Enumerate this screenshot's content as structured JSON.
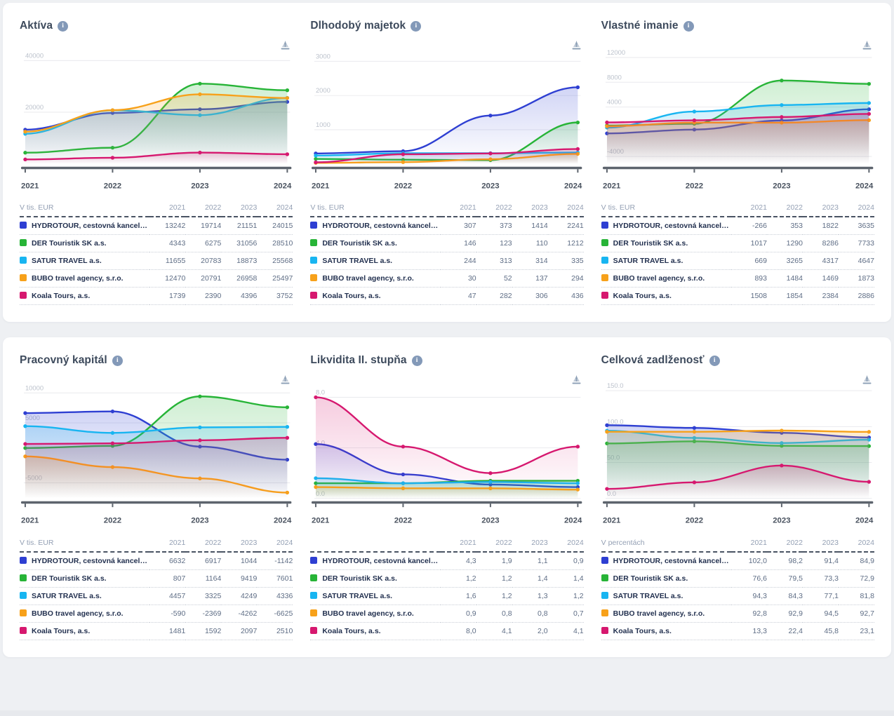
{
  "companies": [
    {
      "label": "HYDROTOUR, cestovná kancelári...",
      "color": "#2e3fd2"
    },
    {
      "label": "DER Touristik SK a.s.",
      "color": "#27b437"
    },
    {
      "label": "SATUR TRAVEL a.s.",
      "color": "#18b5f1"
    },
    {
      "label": "BUBO travel agency, s.r.o.",
      "color": "#f7a11a"
    },
    {
      "label": "Koala Tours, a.s.",
      "color": "#d6186f"
    }
  ],
  "icons": {
    "info": "i",
    "download": "download-chart-icon"
  },
  "panels": [
    {
      "title": "Aktíva",
      "unit_label": "V tis. EUR",
      "years": [
        "2021",
        "2022",
        "2023",
        "2024"
      ],
      "values": [
        [
          "13242",
          "19714",
          "21151",
          "24015"
        ],
        [
          "4343",
          "6275",
          "31056",
          "28510"
        ],
        [
          "11655",
          "20783",
          "18873",
          "25568"
        ],
        [
          "12470",
          "20791",
          "26958",
          "25497"
        ],
        [
          "1739",
          "2390",
          "4396",
          "3752"
        ]
      ]
    },
    {
      "title": "Dlhodobý majetok",
      "unit_label": "V tis. EUR",
      "years": [
        "2021",
        "2022",
        "2023",
        "2024"
      ],
      "values": [
        [
          "307",
          "373",
          "1414",
          "2241"
        ],
        [
          "146",
          "123",
          "110",
          "1212"
        ],
        [
          "244",
          "313",
          "314",
          "335"
        ],
        [
          "30",
          "52",
          "137",
          "294"
        ],
        [
          "47",
          "282",
          "306",
          "436"
        ]
      ]
    },
    {
      "title": "Vlastné imanie",
      "unit_label": "V tis. EUR",
      "years": [
        "2021",
        "2022",
        "2023",
        "2024"
      ],
      "values": [
        [
          "-266",
          "353",
          "1822",
          "3635"
        ],
        [
          "1017",
          "1290",
          "8286",
          "7733"
        ],
        [
          "669",
          "3265",
          "4317",
          "4647"
        ],
        [
          "893",
          "1484",
          "1469",
          "1873"
        ],
        [
          "1508",
          "1854",
          "2384",
          "2886"
        ]
      ]
    },
    {
      "title": "Pracovný kapitál",
      "unit_label": "V tis. EUR",
      "years": [
        "2021",
        "2022",
        "2023",
        "2024"
      ],
      "values": [
        [
          "6632",
          "6917",
          "1044",
          "-1142"
        ],
        [
          "807",
          "1164",
          "9419",
          "7601"
        ],
        [
          "4457",
          "3325",
          "4249",
          "4336"
        ],
        [
          "-590",
          "-2369",
          "-4262",
          "-6625"
        ],
        [
          "1481",
          "1592",
          "2097",
          "2510"
        ]
      ]
    },
    {
      "title": "Likvidita II. stupňa",
      "unit_label": "",
      "years": [
        "2021",
        "2022",
        "2023",
        "2024"
      ],
      "values": [
        [
          "4,3",
          "1,9",
          "1,1",
          "0,9"
        ],
        [
          "1,2",
          "1,2",
          "1,4",
          "1,4"
        ],
        [
          "1,6",
          "1,2",
          "1,3",
          "1,2"
        ],
        [
          "0,9",
          "0,8",
          "0,8",
          "0,7"
        ],
        [
          "8,0",
          "4,1",
          "2,0",
          "4,1"
        ]
      ]
    },
    {
      "title": "Celková zadlženosť",
      "unit_label": "V percentách",
      "years": [
        "2021",
        "2022",
        "2023",
        "2024"
      ],
      "values": [
        [
          "102,0",
          "98,2",
          "91,4",
          "84,9"
        ],
        [
          "76,6",
          "79,5",
          "73,3",
          "72,9"
        ],
        [
          "94,3",
          "84,3",
          "77,1",
          "81,8"
        ],
        [
          "92,8",
          "92,9",
          "94,5",
          "92,7"
        ],
        [
          "13,3",
          "22,4",
          "45,8",
          "23,1"
        ]
      ]
    }
  ],
  "chart_data": [
    {
      "type": "line",
      "title": "Aktíva",
      "x": [
        2021,
        2022,
        2023,
        2024
      ],
      "ylim": [
        0,
        45000
      ],
      "yticks": [
        {
          "value": 40000,
          "label": "40000"
        },
        {
          "value": 20000,
          "label": "20000"
        }
      ],
      "legend_position": "table-below",
      "grid": true,
      "series": [
        {
          "name": "HYDROTOUR, cestovná kancelári...",
          "color": "#2e3fd2",
          "values": [
            13242,
            19714,
            21151,
            24015
          ]
        },
        {
          "name": "DER Touristik SK a.s.",
          "color": "#27b437",
          "values": [
            4343,
            6275,
            31056,
            28510
          ]
        },
        {
          "name": "SATUR TRAVEL a.s.",
          "color": "#18b5f1",
          "values": [
            11655,
            20783,
            18873,
            25568
          ]
        },
        {
          "name": "BUBO travel agency, s.r.o.",
          "color": "#f7a11a",
          "values": [
            12470,
            20791,
            26958,
            25497
          ]
        },
        {
          "name": "Koala Tours, a.s.",
          "color": "#d6186f",
          "values": [
            1739,
            2390,
            4396,
            3752
          ]
        }
      ]
    },
    {
      "type": "line",
      "title": "Dlhodobý majetok",
      "x": [
        2021,
        2022,
        2023,
        2024
      ],
      "ylim": [
        0,
        3400
      ],
      "yticks": [
        {
          "value": 3000,
          "label": "3000"
        },
        {
          "value": 2000,
          "label": "2000"
        },
        {
          "value": 1000,
          "label": "1000"
        }
      ],
      "legend_position": "table-below",
      "grid": true,
      "series": [
        {
          "name": "HYDROTOUR, cestovná kancelári...",
          "color": "#2e3fd2",
          "values": [
            307,
            373,
            1414,
            2241
          ]
        },
        {
          "name": "DER Touristik SK a.s.",
          "color": "#27b437",
          "values": [
            146,
            123,
            110,
            1212
          ]
        },
        {
          "name": "SATUR TRAVEL a.s.",
          "color": "#18b5f1",
          "values": [
            244,
            313,
            314,
            335
          ]
        },
        {
          "name": "BUBO travel agency, s.r.o.",
          "color": "#f7a11a",
          "values": [
            30,
            52,
            137,
            294
          ]
        },
        {
          "name": "Koala Tours, a.s.",
          "color": "#d6186f",
          "values": [
            47,
            282,
            306,
            436
          ]
        }
      ]
    },
    {
      "type": "line",
      "title": "Vlastné imanie",
      "x": [
        2021,
        2022,
        2023,
        2024
      ],
      "ylim": [
        -5200,
        13600
      ],
      "yticks": [
        {
          "value": 12000,
          "label": "12000"
        },
        {
          "value": 8000,
          "label": "8000"
        },
        {
          "value": 4000,
          "label": "4000"
        },
        {
          "value": -4000,
          "label": "-4000"
        }
      ],
      "legend_position": "table-below",
      "grid": true,
      "series": [
        {
          "name": "HYDROTOUR, cestovná kancelári...",
          "color": "#2e3fd2",
          "values": [
            -266,
            353,
            1822,
            3635
          ]
        },
        {
          "name": "DER Touristik SK a.s.",
          "color": "#27b437",
          "values": [
            1017,
            1290,
            8286,
            7733
          ]
        },
        {
          "name": "SATUR TRAVEL a.s.",
          "color": "#18b5f1",
          "values": [
            669,
            3265,
            4317,
            4647
          ]
        },
        {
          "name": "BUBO travel agency, s.r.o.",
          "color": "#f7a11a",
          "values": [
            893,
            1484,
            1469,
            1873
          ]
        },
        {
          "name": "Koala Tours, a.s.",
          "color": "#d6186f",
          "values": [
            1508,
            1854,
            2384,
            2886
          ]
        }
      ]
    },
    {
      "type": "line",
      "title": "Pracovný kapitál",
      "x": [
        2021,
        2022,
        2023,
        2024
      ],
      "ylim": [
        -7600,
        11800
      ],
      "yticks": [
        {
          "value": 10000,
          "label": "10000"
        },
        {
          "value": 5000,
          "label": "5000"
        },
        {
          "value": -5000,
          "label": "-5000"
        }
      ],
      "legend_position": "table-below",
      "grid": true,
      "series": [
        {
          "name": "HYDROTOUR, cestovná kancelári...",
          "color": "#2e3fd2",
          "values": [
            6632,
            6917,
            1044,
            -1142
          ]
        },
        {
          "name": "DER Touristik SK a.s.",
          "color": "#27b437",
          "values": [
            807,
            1164,
            9419,
            7601
          ]
        },
        {
          "name": "SATUR TRAVEL a.s.",
          "color": "#18b5f1",
          "values": [
            4457,
            3325,
            4249,
            4336
          ]
        },
        {
          "name": "BUBO travel agency, s.r.o.",
          "color": "#f7a11a",
          "values": [
            -590,
            -2369,
            -4262,
            -6625
          ]
        },
        {
          "name": "Koala Tours, a.s.",
          "color": "#d6186f",
          "values": [
            1481,
            1592,
            2097,
            2510
          ]
        }
      ]
    },
    {
      "type": "line",
      "title": "Likvidita II. stupňa",
      "x": [
        2021,
        2022,
        2023,
        2024
      ],
      "ylim": [
        0,
        9.2
      ],
      "yticks": [
        {
          "value": 8,
          "label": "8.0"
        },
        {
          "value": 4,
          "label": "4.0"
        },
        {
          "value": 0,
          "label": "0.0"
        }
      ],
      "legend_position": "table-below",
      "grid": true,
      "series": [
        {
          "name": "HYDROTOUR, cestovná kancelári...",
          "color": "#2e3fd2",
          "values": [
            4.3,
            1.9,
            1.1,
            0.9
          ]
        },
        {
          "name": "DER Touristik SK a.s.",
          "color": "#27b437",
          "values": [
            1.2,
            1.2,
            1.4,
            1.4
          ]
        },
        {
          "name": "SATUR TRAVEL a.s.",
          "color": "#18b5f1",
          "values": [
            1.6,
            1.2,
            1.3,
            1.2
          ]
        },
        {
          "name": "BUBO travel agency, s.r.o.",
          "color": "#f7a11a",
          "values": [
            0.9,
            0.8,
            0.8,
            0.7
          ]
        },
        {
          "name": "Koala Tours, a.s.",
          "color": "#d6186f",
          "values": [
            8.0,
            4.1,
            2.0,
            4.1
          ]
        }
      ]
    },
    {
      "type": "line",
      "title": "Celková zadlženosť",
      "x": [
        2021,
        2022,
        2023,
        2024
      ],
      "ylim": [
        0,
        162
      ],
      "yticks": [
        {
          "value": 150,
          "label": "150.0"
        },
        {
          "value": 100,
          "label": "100.0"
        },
        {
          "value": 50,
          "label": "50.0"
        },
        {
          "value": 0,
          "label": "0.0"
        }
      ],
      "legend_position": "table-below",
      "grid": true,
      "series": [
        {
          "name": "HYDROTOUR, cestovná kancelári...",
          "color": "#2e3fd2",
          "values": [
            102.0,
            98.2,
            91.4,
            84.9
          ]
        },
        {
          "name": "DER Touristik SK a.s.",
          "color": "#27b437",
          "values": [
            76.6,
            79.5,
            73.3,
            72.9
          ]
        },
        {
          "name": "SATUR TRAVEL a.s.",
          "color": "#18b5f1",
          "values": [
            94.3,
            84.3,
            77.1,
            81.8
          ]
        },
        {
          "name": "BUBO travel agency, s.r.o.",
          "color": "#f7a11a",
          "values": [
            92.8,
            92.9,
            94.5,
            92.7
          ]
        },
        {
          "name": "Koala Tours, a.s.",
          "color": "#d6186f",
          "values": [
            13.3,
            22.4,
            45.8,
            23.1
          ]
        }
      ]
    }
  ],
  "colors": {
    "page_bg": "#eef0f3",
    "card_bg": "#ffffff",
    "title_text": "#3d4a5c",
    "axis_line": "#5d646d",
    "gridline": "#e9eaee"
  }
}
